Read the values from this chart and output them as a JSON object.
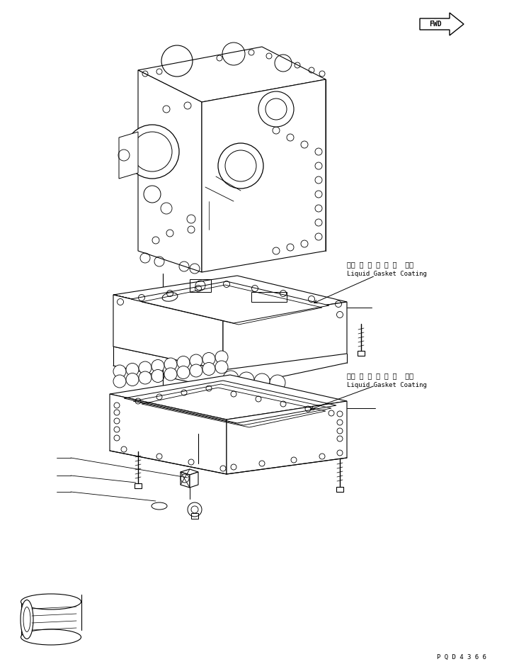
{
  "bg_color": "#ffffff",
  "line_color": "#000000",
  "fig_width": 7.26,
  "fig_height": 9.45,
  "dpi": 100,
  "label1_jp": "液状 ガ ス ケ ッ ト  塗布",
  "label1_en": "Liquid Gasket Coating",
  "label2_jp": "液状 ガ ス ケ ッ ト  塗布",
  "label2_en": "Liquid Gasket Coating",
  "part_number": "P Q D 4 3 6 6",
  "fwd_text": "FWD"
}
